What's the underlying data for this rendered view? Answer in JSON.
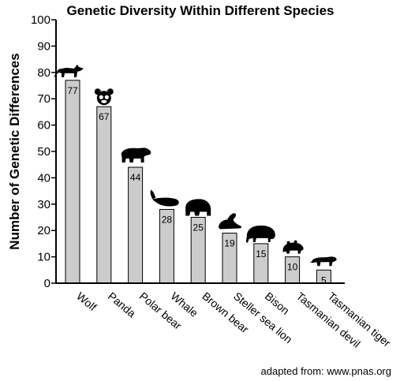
{
  "chart_data": {
    "type": "bar",
    "title": "Genetic Diversity Within Different Species",
    "ylabel": "Number of Genetic Differences",
    "xlabel": "",
    "ylim": [
      0,
      100
    ],
    "yticks": [
      0,
      10,
      20,
      30,
      40,
      50,
      60,
      70,
      80,
      90,
      100
    ],
    "categories": [
      "Wolf",
      "Panda",
      "Polar bear",
      "Whale",
      "Brown bear",
      "Steller sea lion",
      "Bison",
      "Tasmanian devil",
      "Tasmanian tiger"
    ],
    "values": [
      77,
      67,
      44,
      28,
      25,
      19,
      15,
      10,
      5
    ],
    "value_labels": [
      "77",
      "67",
      "44",
      "28",
      "25",
      "19",
      "15",
      "10",
      "5"
    ],
    "bar_color": "#cccccc",
    "grid": false,
    "legend": "none",
    "icons": [
      "wolf-icon",
      "panda-icon",
      "polar-bear-icon",
      "whale-icon",
      "brown-bear-icon",
      "sea-lion-icon",
      "bison-icon",
      "tasmanian-devil-icon",
      "tasmanian-tiger-icon"
    ]
  },
  "source_note": "adapted from: www.pnas.org"
}
